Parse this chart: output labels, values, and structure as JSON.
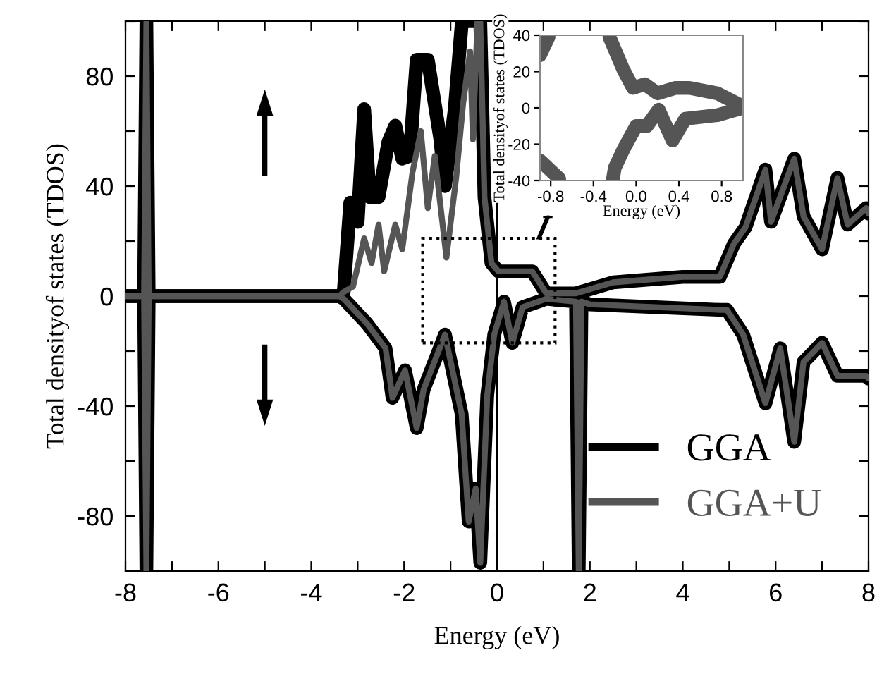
{
  "chart_data": [
    {
      "type": "line",
      "xlabel": "Energy (eV)",
      "ylabel": "Total densityof states (TDOS)",
      "xlim": [
        -8,
        8
      ],
      "xticks": [
        -8,
        {
          "value": -7,
          "label": null
        },
        -6,
        {
          "value": -5,
          "label": null
        },
        -4,
        {
          "value": -3,
          "label": null
        },
        -2,
        {
          "value": -1,
          "label": null
        },
        0,
        {
          "value": 1,
          "label": null
        },
        2,
        {
          "value": 3,
          "label": null
        },
        4,
        {
          "value": 5,
          "label": null
        },
        6,
        {
          "value": 7,
          "label": null
        },
        8
      ],
      "ylim": [
        -100,
        100
      ],
      "yticks": [
        {
          "value": -100,
          "label": null
        },
        -80,
        {
          "value": -60,
          "label": null
        },
        -40,
        {
          "value": -20,
          "label": null
        },
        0,
        {
          "value": 20,
          "label": null
        },
        40,
        {
          "value": 60,
          "label": null
        },
        80,
        {
          "value": 100,
          "label": null
        }
      ],
      "legend": "bottom right",
      "grid": false,
      "ref_lines": [
        {
          "axis": "x",
          "value": 0,
          "color": "#000000"
        }
      ],
      "series": [
        {
          "name": "GGA",
          "color": "#000000",
          "x": [
            -8,
            -7.6,
            -7.55,
            -7.5,
            -3.4,
            -3.3,
            -3.16,
            -3.0,
            -2.86,
            -2.74,
            -2.55,
            -2.34,
            -2.19,
            -2.04,
            -1.88,
            -1.73,
            -1.49,
            -1.22,
            -1.12,
            -0.91,
            -0.76,
            -0.7,
            -0.36,
            -0.27,
            -0.12,
            0.03,
            0.33,
            0.76,
            1.06,
            1.7,
            2.5,
            4.0,
            4.8,
            5.1,
            5.35,
            5.78,
            5.9,
            6.4,
            6.6,
            7.0,
            7.33,
            7.55,
            7.95,
            8
          ],
          "values": [
            0,
            0,
            100,
            0,
            0,
            1.5,
            34,
            27,
            68,
            36,
            36,
            56,
            62,
            50,
            51,
            86,
            86,
            57,
            40,
            68,
            99,
            100,
            100,
            36,
            12,
            9,
            9,
            9,
            1,
            1,
            5,
            7,
            7,
            19,
            25,
            46,
            27,
            50,
            29,
            17,
            43,
            26,
            32,
            30
          ]
        },
        {
          "color": "#000000",
          "x": [
            -8,
            -7.6,
            -7.55,
            -7.5,
            -3.4,
            -3.3,
            -2.8,
            -2.4,
            -2.25,
            -1.98,
            -1.73,
            -1.58,
            -1.12,
            -0.76,
            -0.61,
            -0.46,
            -0.36,
            -0.21,
            -0.06,
            0.15,
            0.33,
            0.55,
            1.06,
            1.7,
            1.76,
            1.82,
            2.0,
            4.8,
            4.95,
            5.3,
            5.78,
            6.1,
            6.4,
            6.6,
            7.0,
            7.33,
            7.95,
            8
          ],
          "values": [
            0,
            0,
            -100,
            0,
            0,
            -1,
            -10,
            -19,
            -37,
            -27,
            -48,
            -34,
            -14,
            -43,
            -82,
            -70,
            -97,
            -36,
            -14,
            -2,
            -17,
            -4,
            -1,
            -2,
            -100,
            -2,
            -3,
            -5,
            -5,
            -14,
            -39,
            -19,
            -53,
            -24,
            -17,
            -29,
            -29,
            -30
          ]
        },
        {
          "name": "GGA+U",
          "color": "#555555",
          "x": [
            -8,
            -7.6,
            -7.55,
            -7.5,
            -3.4,
            -3.3,
            -3.1,
            -2.86,
            -2.7,
            -2.55,
            -2.43,
            -2.19,
            -2.04,
            -1.82,
            -1.64,
            -1.49,
            -1.34,
            -1.09,
            -0.88,
            -0.73,
            -0.58,
            -0.52,
            -0.42,
            -0.36,
            -0.27,
            -0.12,
            0.03,
            0.33,
            0.76,
            1.06,
            1.7,
            2.5,
            4.0,
            4.8,
            5.1,
            5.35,
            5.78,
            5.9,
            6.4,
            6.6,
            7.0,
            7.33,
            7.55,
            7.95,
            8
          ],
          "values": [
            0,
            0,
            100,
            0,
            0,
            1.5,
            3.5,
            21,
            12,
            26,
            9,
            26,
            17,
            45,
            60,
            32,
            51,
            14,
            43,
            70,
            89,
            57,
            100,
            100,
            36,
            12,
            9,
            9,
            9,
            1,
            1,
            5,
            7,
            7,
            19,
            25,
            46,
            27,
            50,
            29,
            17,
            43,
            26,
            32,
            30
          ]
        },
        {
          "color": "#555555",
          "x": [
            -8,
            -7.6,
            -7.55,
            -7.5,
            -3.4,
            -3.3,
            -2.8,
            -2.4,
            -2.25,
            -1.98,
            -1.73,
            -1.58,
            -1.12,
            -0.76,
            -0.61,
            -0.46,
            -0.36,
            -0.21,
            -0.06,
            0.15,
            0.33,
            0.55,
            1.06,
            1.7,
            1.76,
            1.82,
            2.0,
            4.8,
            4.95,
            5.3,
            5.78,
            6.1,
            6.4,
            6.6,
            7.0,
            7.33,
            7.95,
            8
          ],
          "values": [
            0,
            0,
            -100,
            0,
            0,
            -1,
            -10,
            -19,
            -37,
            -27,
            -48,
            -34,
            -14,
            -43,
            -82,
            -70,
            -97,
            -36,
            -14,
            -2,
            -17,
            -4,
            -1,
            -2,
            -100,
            -2,
            -3,
            -5,
            -5,
            -14,
            -39,
            -19,
            -53,
            -24,
            -17,
            -29,
            -29,
            -30
          ]
        }
      ]
    },
    {
      "type": "line",
      "xlabel": "Energy (eV)",
      "ylabel": "Total densityof states (TDOS)",
      "xlim": [
        -0.9,
        1.0
      ],
      "xticks": [
        -0.8,
        -0.4,
        {
          "value": 0,
          "label": "0.0"
        },
        0.4,
        0.8
      ],
      "ylim": [
        -40,
        40
      ],
      "yticks": [
        -40,
        -20,
        0,
        20,
        40
      ],
      "grid": false,
      "series": [
        {
          "color": "#555555",
          "x": [
            -0.9,
            -0.82,
            -0.5,
            -0.25,
            -0.12,
            -0.03,
            0.08,
            0.2,
            0.37,
            0.5,
            0.76,
            0.96,
            1.0
          ],
          "values": [
            29,
            39,
            null,
            39,
            21,
            11,
            13,
            8,
            11,
            11,
            8,
            2,
            0
          ]
        },
        {
          "color": "#555555",
          "x": [
            -0.9,
            -0.72,
            -0.5,
            -0.22,
            -0.2,
            -0.12,
            0.0,
            0.1,
            0.21,
            0.34,
            0.46,
            0.76,
            1.0
          ],
          "values": [
            -29,
            -39,
            null,
            -40,
            -33,
            -23,
            -10,
            -10,
            -1,
            -18,
            -6,
            -4,
            0
          ]
        }
      ]
    }
  ]
}
